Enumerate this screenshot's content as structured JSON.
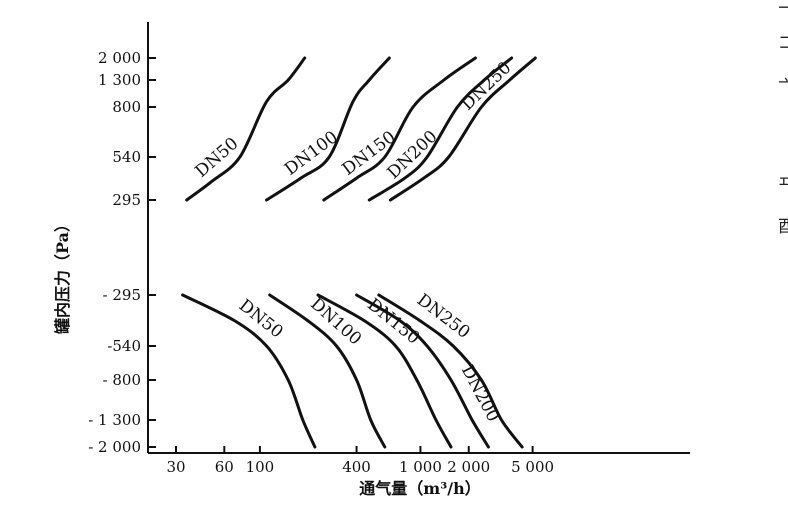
{
  "chart_data": {
    "type": "line",
    "title": "",
    "xlabel": "通气量（m³/h）",
    "ylabel": "罐内压力（Pa）",
    "x_scale": "log",
    "x_ticks": [
      30,
      60,
      100,
      400,
      1000,
      2000,
      5000
    ],
    "x_tick_labels": [
      "30",
      "60",
      "100",
      "400",
      "1 000",
      "2 000",
      "5 000"
    ],
    "y_ticks": [
      2000,
      1300,
      800,
      540,
      295,
      -295,
      -540,
      -800,
      -1300,
      -2000
    ],
    "y_tick_labels": [
      "2 000",
      "1 300",
      "800",
      "540",
      "295",
      "- 295",
      "-540",
      "- 800",
      "- 1 300",
      "- 2 000"
    ],
    "series": [
      {
        "name": "DN50",
        "region": "positive",
        "points": [
          [
            35,
            295
          ],
          [
            50,
            400
          ],
          [
            75,
            540
          ],
          [
            110,
            900
          ],
          [
            150,
            1300
          ],
          [
            190,
            2000
          ]
        ]
      },
      {
        "name": "DN100",
        "region": "positive",
        "points": [
          [
            110,
            295
          ],
          [
            180,
            420
          ],
          [
            270,
            540
          ],
          [
            380,
            900
          ],
          [
            480,
            1300
          ],
          [
            640,
            2000
          ]
        ]
      },
      {
        "name": "DN150",
        "region": "positive",
        "points": [
          [
            250,
            295
          ],
          [
            400,
            420
          ],
          [
            600,
            540
          ],
          [
            900,
            800
          ],
          [
            1400,
            1300
          ],
          [
            2200,
            2000
          ]
        ]
      },
      {
        "name": "DN200",
        "region": "positive",
        "points": [
          [
            480,
            295
          ],
          [
            800,
            420
          ],
          [
            1100,
            540
          ],
          [
            1700,
            800
          ],
          [
            2500,
            1300
          ],
          [
            3700,
            2000
          ]
        ]
      },
      {
        "name": "DN250",
        "region": "positive",
        "points": [
          [
            650,
            295
          ],
          [
            1050,
            420
          ],
          [
            1500,
            540
          ],
          [
            2400,
            800
          ],
          [
            3600,
            1300
          ],
          [
            5200,
            2000
          ]
        ]
      },
      {
        "name": "DN50",
        "region": "negative",
        "points": [
          [
            33,
            -295
          ],
          [
            70,
            -420
          ],
          [
            110,
            -540
          ],
          [
            150,
            -800
          ],
          [
            185,
            -1300
          ],
          [
            220,
            -2000
          ]
        ]
      },
      {
        "name": "DN100",
        "region": "negative",
        "points": [
          [
            115,
            -295
          ],
          [
            200,
            -420
          ],
          [
            300,
            -540
          ],
          [
            400,
            -800
          ],
          [
            490,
            -1300
          ],
          [
            600,
            -2000
          ]
        ]
      },
      {
        "name": "DN150",
        "region": "negative",
        "points": [
          [
            230,
            -295
          ],
          [
            450,
            -420
          ],
          [
            700,
            -540
          ],
          [
            950,
            -800
          ],
          [
            1250,
            -1300
          ],
          [
            1550,
            -2000
          ]
        ]
      },
      {
        "name": "DN200",
        "region": "negative",
        "points": [
          [
            400,
            -295
          ],
          [
            750,
            -420
          ],
          [
            1100,
            -540
          ],
          [
            1550,
            -800
          ],
          [
            2100,
            -1300
          ],
          [
            2650,
            -2000
          ]
        ]
      },
      {
        "name": "DN250",
        "region": "negative",
        "points": [
          [
            550,
            -295
          ],
          [
            1000,
            -420
          ],
          [
            1600,
            -540
          ],
          [
            2400,
            -800
          ],
          [
            3200,
            -1300
          ],
          [
            4300,
            -2000
          ]
        ]
      }
    ],
    "grid": false,
    "legend": "none"
  },
  "edge_text": {
    "right_column_glyphs": [
      "二",
      "ゴ",
      "亠",
      "ヰ",
      "酉"
    ]
  }
}
